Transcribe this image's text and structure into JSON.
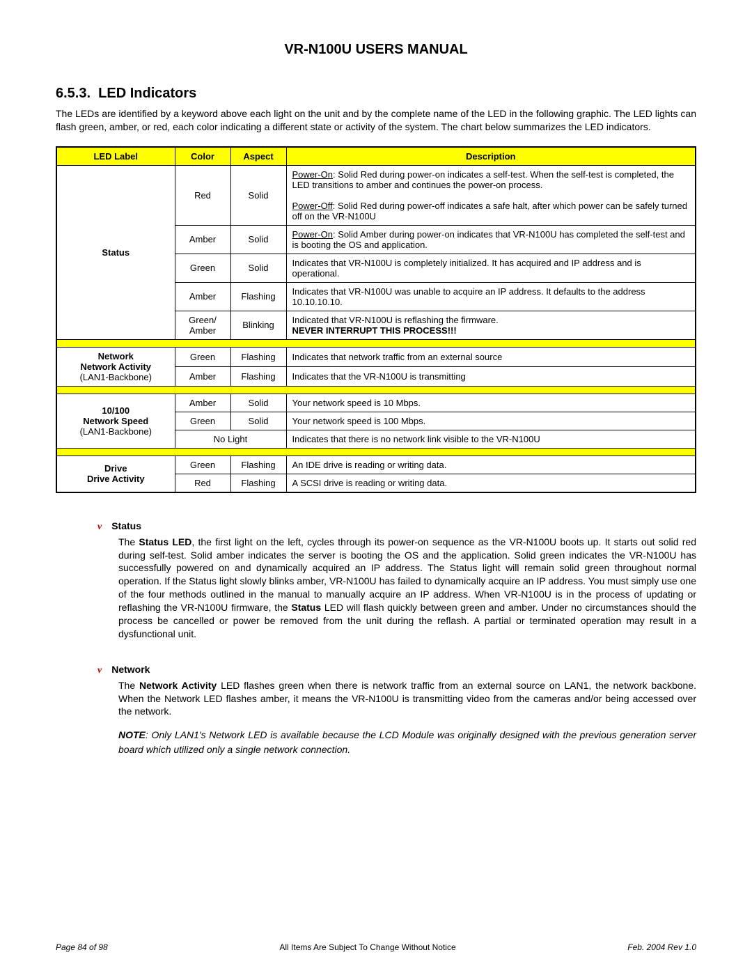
{
  "doc_title": "VR-N100U USERS MANUAL",
  "section_number": "6.5.3.",
  "section_title": "LED Indicators",
  "intro": "The LEDs are identified by a keyword above each light on the unit and by the complete name of the LED in the following graphic. The LED lights can flash green, amber, or red, each color indicating a different state or activity of the system.  The chart below summarizes the LED indicators.",
  "table": {
    "headers": {
      "label": "LED Label",
      "color": "Color",
      "aspect": "Aspect",
      "desc": "Description"
    },
    "groups": [
      {
        "label_bold": "Status",
        "label_rest": "",
        "rows": [
          {
            "color": "Red",
            "aspect": "Solid",
            "desc_html": "<u>Power-On</u>: Solid Red during power-on indicates a self-test. When the self-test is completed, the LED transitions to amber and continues the power-on process.<br><br><u>Power-Off</u>: Solid Red during power-off indicates a safe halt, after which power can be safely turned off on the VR-N100U"
          },
          {
            "color": "Amber",
            "aspect": "Solid",
            "desc_html": "<u>Power-On</u>: Solid Amber during power-on indicates that VR-N100U has completed the self-test and is booting the OS and application."
          },
          {
            "color": "Green",
            "aspect": "Solid",
            "desc_html": "Indicates that VR-N100U is completely initialized.  It has acquired and IP address and is operational."
          },
          {
            "color": "Amber",
            "aspect": "Flashing",
            "desc_html": "Indicates that VR-N100U was unable to acquire an IP address.  It defaults to the address 10.10.10.10."
          },
          {
            "color": "Green/\nAmber",
            "aspect": "Blinking",
            "desc_html": "Indicated that VR-N100U is reflashing the firmware.<br><b>NEVER INTERRUPT THIS PROCESS!!!</b>"
          }
        ]
      },
      {
        "label_bold": "Network\nNetwork Activity",
        "label_rest": "(LAN1-Backbone)",
        "rows": [
          {
            "color": "Green",
            "aspect": "Flashing",
            "desc_html": "Indicates that network traffic from an external source"
          },
          {
            "color": "Amber",
            "aspect": "Flashing",
            "desc_html": "Indicates that the VR-N100U is transmitting"
          }
        ]
      },
      {
        "label_bold": "10/100\nNetwork Speed",
        "label_rest": "(LAN1-Backbone)",
        "rows": [
          {
            "color": "Amber",
            "aspect": "Solid",
            "desc_html": "Your network speed is 10 Mbps."
          },
          {
            "color": "Green",
            "aspect": "Solid",
            "desc_html": "Your network speed is 100 Mbps."
          },
          {
            "merged": "No Light",
            "desc_html": "Indicates that there is no network link visible to the VR-N100U"
          }
        ]
      },
      {
        "label_bold": "Drive\nDrive Activity",
        "label_rest": "",
        "rows": [
          {
            "color": "Green",
            "aspect": "Flashing",
            "desc_html": "An IDE drive is reading or writing data."
          },
          {
            "color": "Red",
            "aspect": "Flashing",
            "desc_html": "A SCSI drive is reading or writing data."
          }
        ]
      }
    ]
  },
  "details": {
    "status": {
      "heading": "Status",
      "body_html": "The <b>Status LED</b>, the first light on the left, cycles through its power-on sequence as the VR-N100U boots up. It starts out solid red during self-test. Solid amber indicates the server is booting the OS and the application. Solid green indicates the VR-N100U has successfully powered on and dynamically acquired an IP address. The Status light will remain solid green throughout normal operation. If the Status light slowly blinks amber, VR-N100U has failed to dynamically acquire an IP address. You must simply use one of the four methods outlined in the manual to manually acquire an IP address. When VR-N100U is in the process of updating or reflashing the VR-N100U firmware, the <b>Status</b> LED will flash quickly between green and amber. Under no circumstances should the process be cancelled or power be removed from the unit during the reflash. A partial or terminated operation may result in a dysfunctional unit."
    },
    "network": {
      "heading": "Network",
      "body_html": "The <b>Network Activity</b> LED flashes green when there is network traffic from an external source on LAN1, the network backbone. When the Network LED flashes amber, it means the VR-N100U is transmitting video from the cameras and/or being accessed over the network.",
      "note_html": "<b>NOTE</b>:  Only LAN1's Network LED is available because the LCD Module was originally designed with the previous generation server board which utilized only a single network connection."
    }
  },
  "footer": {
    "left": "Page 84 of 98",
    "center": "All Items Are Subject To Change Without Notice",
    "right": "Feb. 2004 Rev 1.0"
  }
}
